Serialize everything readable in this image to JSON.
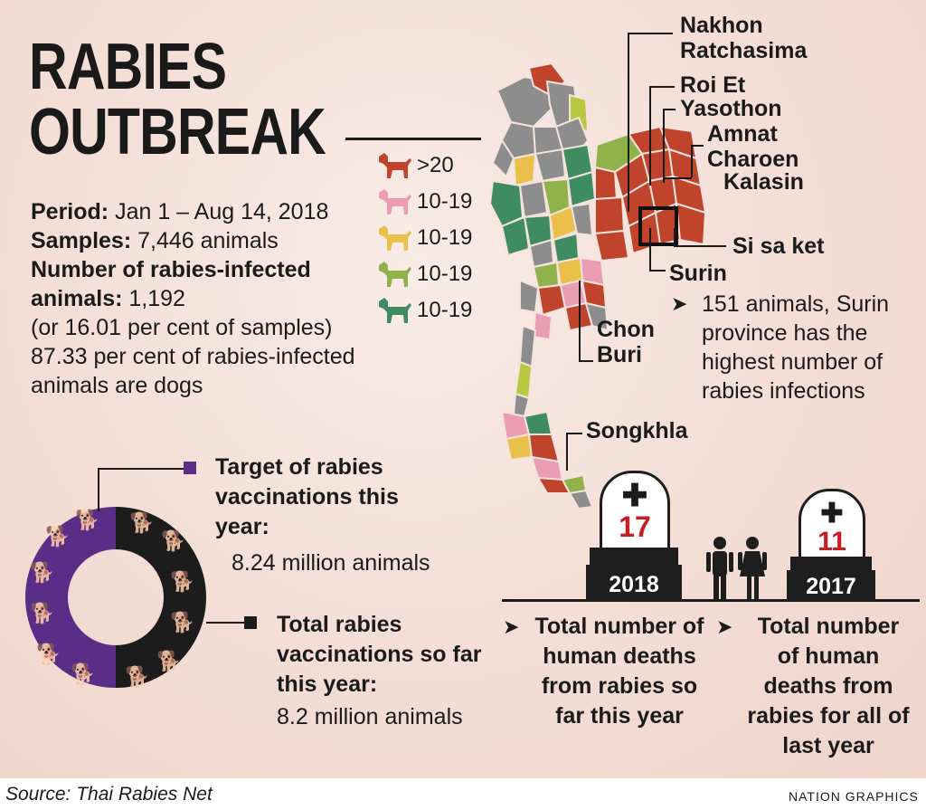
{
  "title": {
    "line1": "RABIES",
    "line2": "OUTBREAK"
  },
  "stats": {
    "period_label": "Period:",
    "period_value": "Jan 1 – Aug 14, 2018",
    "samples_label": "Samples:",
    "samples_value": "7,446 animals",
    "infected_label": "Number of rabies-infected animals:",
    "infected_value": "1,192",
    "percent_line": "(or 16.01 per cent of samples)",
    "dogs_line": "87.33 per cent of rabies-infected animals are dogs"
  },
  "legend": [
    {
      "label": ">20",
      "color": "#c0432c"
    },
    {
      "label": "10-19",
      "color": "#e99cb4"
    },
    {
      "label": "10-19",
      "color": "#eac04a"
    },
    {
      "label": "10-19",
      "color": "#8fb24a"
    },
    {
      "label": "10-19",
      "color": "#3f8b62"
    }
  ],
  "places": {
    "nakhon": "Nakhon Ratchasima",
    "roiet": "Roi Et",
    "yasothon": "Yasothon",
    "amnat": "Amnat Charoen",
    "kalasin": "Kalasin",
    "sisaket": "Si sa ket",
    "surin": "Surin",
    "chonburi": "Chon Buri",
    "songkhla": "Songkhla"
  },
  "surin_note": "151 animals, Surin province has the highest number of rabies infections",
  "vaccination": {
    "target_label": "Target of rabies vaccinations this year:",
    "target_value": "8.24 million animals",
    "sofar_label": "Total rabies vaccinations so far this year:",
    "sofar_value": "8.2 million animals",
    "ring_colors": {
      "target": "#5a2d86",
      "sofar": "#1c1c1c"
    }
  },
  "deaths": {
    "y2018": {
      "count": "17",
      "year": "2018",
      "caption": "Total number of human deaths from rabies so far this year"
    },
    "y2017": {
      "count": "11",
      "year": "2017",
      "caption": "Total number of human deaths from rabies for all of last year"
    }
  },
  "footer": {
    "source": "Source: Thai Rabies Net",
    "credit": "NATION GRAPHICS"
  }
}
